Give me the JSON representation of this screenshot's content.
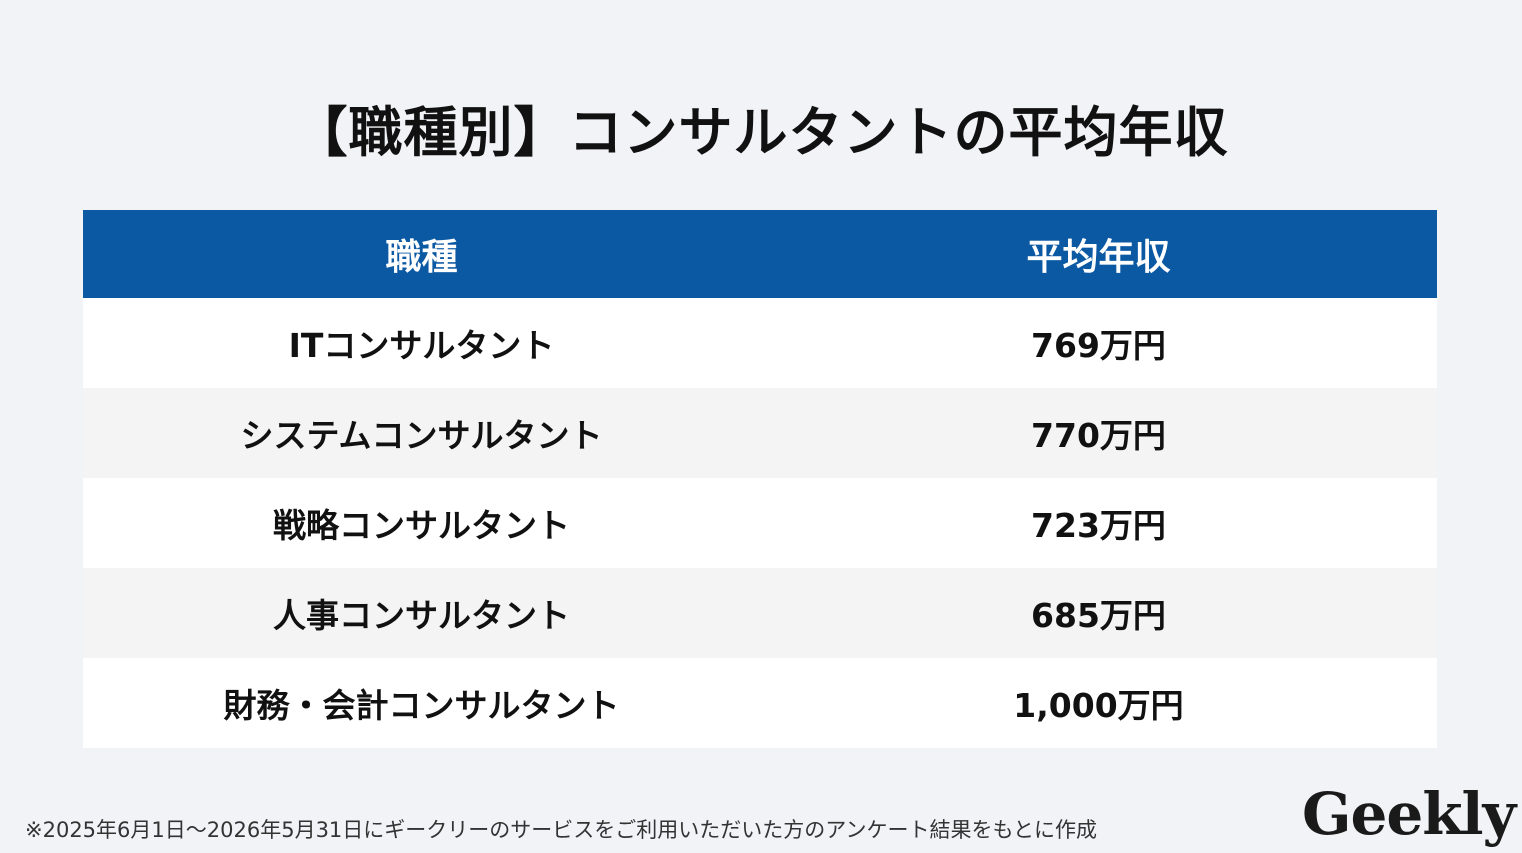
{
  "title": "【職種別】コンサルタントの平均年収",
  "table": {
    "header": {
      "col1": "職種",
      "col2": "平均年収"
    },
    "rows": [
      {
        "job": "ITコンサルタント",
        "salary": "769万円"
      },
      {
        "job": "システムコンサルタント",
        "salary": "770万円"
      },
      {
        "job": "戦略コンサルタント",
        "salary": "723万円"
      },
      {
        "job": "人事コンサルタント",
        "salary": "685万円"
      },
      {
        "job": "財務・会計コンサルタント",
        "salary": "1,000万円"
      }
    ]
  },
  "footnote": "※2025年6月1日〜2026年5月31日にギークリーのサービスをご利用いただいた方のアンケート結果をもとに作成",
  "logo": "Geekly",
  "colors": {
    "header_bg": "#0b58a3",
    "page_bg": "#f2f3f7",
    "row_alt_bg": "#f4f4f4"
  }
}
